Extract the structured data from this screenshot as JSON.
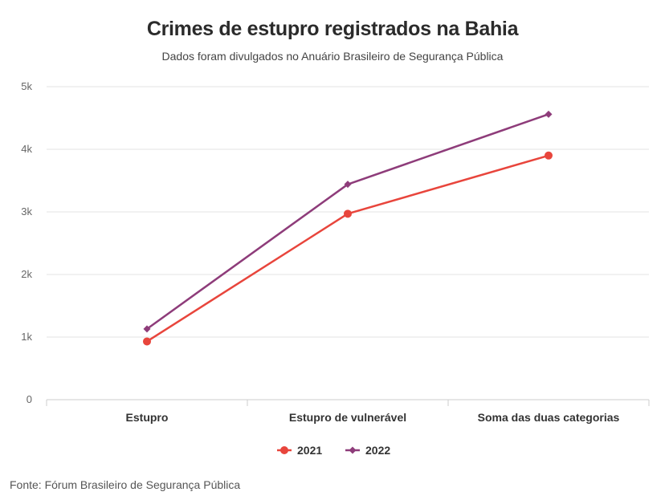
{
  "title": "Crimes de estupro registrados na Bahia",
  "subtitle": "Dados foram divulgados no Anuário Brasileiro de Segurança Pública",
  "source": "Fonte: Fórum Brasileiro de Segurança Pública",
  "chart_data": {
    "type": "line",
    "title": "Crimes de estupro registrados na Bahia",
    "subtitle": "Dados foram divulgados no Anuário Brasileiro de Segurança Pública",
    "categories": [
      "Estupro",
      "Estupro de vulnerável",
      "Soma das duas categorias"
    ],
    "series": [
      {
        "name": "2021",
        "values": [
          930,
          2970,
          3900
        ],
        "color": "#e8453c",
        "marker": "circle"
      },
      {
        "name": "2022",
        "values": [
          1130,
          3440,
          4560
        ],
        "color": "#8e3c7a",
        "marker": "diamond"
      }
    ],
    "ylim": [
      0,
      5000
    ],
    "yticks": [
      0,
      1000,
      2000,
      3000,
      4000,
      5000
    ],
    "ytick_labels": [
      "0",
      "1k",
      "2k",
      "3k",
      "4k",
      "5k"
    ],
    "xlabel": "",
    "ylabel": "",
    "grid": true,
    "legend": "bottom-center"
  }
}
